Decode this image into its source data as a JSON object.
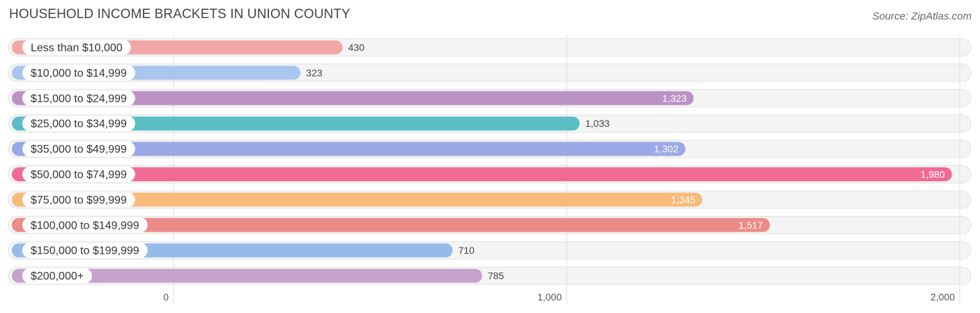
{
  "header": {
    "title": "HOUSEHOLD INCOME BRACKETS IN UNION COUNTY",
    "source": "Source: ZipAtlas.com"
  },
  "chart_data": {
    "type": "bar",
    "orientation": "horizontal",
    "categories": [
      "Less than $10,000",
      "$10,000 to $14,999",
      "$15,000 to $24,999",
      "$25,000 to $34,999",
      "$35,000 to $49,999",
      "$50,000 to $74,999",
      "$75,000 to $99,999",
      "$100,000 to $149,999",
      "$150,000 to $199,999",
      "$200,000+"
    ],
    "values": [
      430,
      323,
      1323,
      1033,
      1302,
      1980,
      1345,
      1517,
      710,
      785
    ],
    "value_labels": [
      "430",
      "323",
      "1,323",
      "1,033",
      "1,302",
      "1,980",
      "1,345",
      "1,517",
      "710",
      "785"
    ],
    "colors": [
      "#f2a7a7",
      "#a9c6ee",
      "#bb92c6",
      "#5bbdc6",
      "#9ba8e6",
      "#f06a94",
      "#f9bb7a",
      "#ec8b87",
      "#97bbe9",
      "#c6a3cc"
    ],
    "xlim": [
      0,
      2000
    ],
    "xticks": [
      0,
      1000,
      2000
    ],
    "xtick_labels": [
      "0",
      "1,000",
      "2,000"
    ],
    "grid": true
  }
}
